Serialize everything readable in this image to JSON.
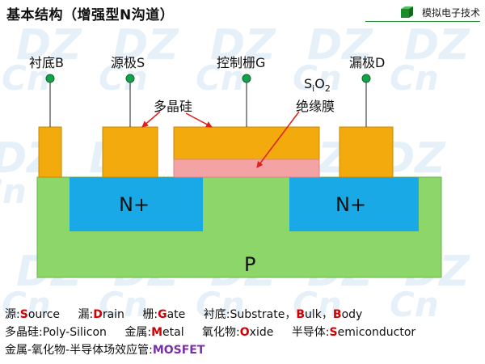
{
  "header": {
    "title": "基本结构（增强型N沟道）",
    "brand": "模拟电子技术"
  },
  "watermark": {
    "text1": "DZ",
    "text2": "Cn"
  },
  "terminals": {
    "substrate": "衬底B",
    "source": "源极S",
    "gate": "控制栅G",
    "drain": "漏极D"
  },
  "materials": {
    "poly": "多晶硅",
    "oxide_formula": "SiO2",
    "oxide_name": "绝缘膜"
  },
  "regions": {
    "n_left": "N+",
    "n_right": "N+",
    "p": "P"
  },
  "legend": {
    "row1": [
      {
        "pre": "源:",
        "key": "S",
        "post": "ource"
      },
      {
        "pre": "漏:",
        "key": "D",
        "post": "rain"
      },
      {
        "pre": "栅:",
        "key": "G",
        "post": "ate"
      },
      {
        "pre": "衬底:Sub",
        "key": "",
        "post": "strate，"
      },
      {
        "pre": "",
        "key": "B",
        "post": "ulk，"
      },
      {
        "pre": "",
        "key": "B",
        "post": "ody"
      }
    ],
    "row2": [
      {
        "pre": "多晶硅:Poly-Silicon",
        "key": "",
        "post": ""
      },
      {
        "pre": "金属:",
        "key": "M",
        "post": "etal"
      },
      {
        "pre": "氧化物:",
        "key": "O",
        "post": "xide"
      },
      {
        "pre": "半导体:",
        "key": "S",
        "post": "emiconductor"
      }
    ],
    "row3_prefix": "金属-氧化物-半导体场效应管:",
    "row3_acronym": "MOSFET"
  },
  "colors": {
    "p_region": "#8cd66a",
    "n_region": "#19a9e6",
    "metal": "#f2aa0c",
    "oxide": "#f4a3a5",
    "terminal_dot": "#14a14a",
    "arrow": "#e0201b",
    "legend_key": "#d40000",
    "acronym": "#7b2fa8"
  },
  "icons": {
    "brand": "cube-icon",
    "terminal": "terminal-dot-icon"
  }
}
